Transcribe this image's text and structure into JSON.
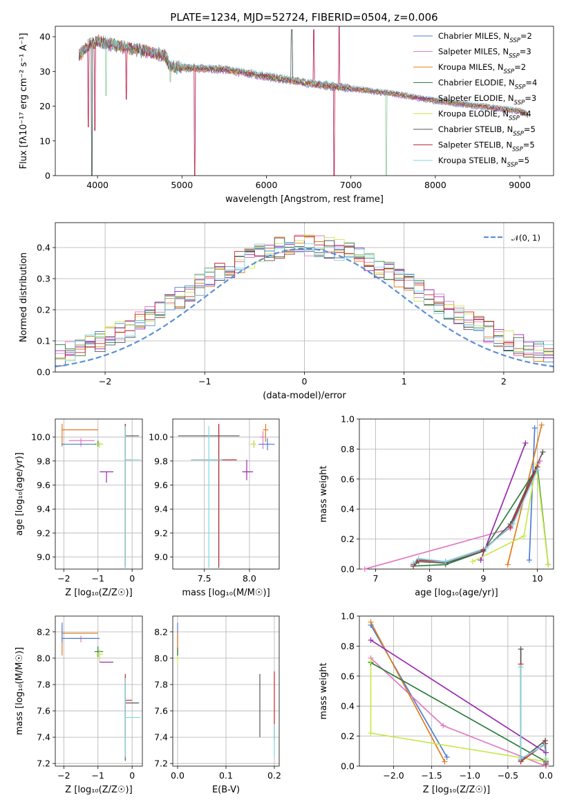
{
  "figure": {
    "title": "PLATE=1234, MJD=52724, FIBERID=0504, z=0.006"
  },
  "colors": {
    "Chabrier MILES": "#4a7cd6",
    "Salpeter MILES": "#e377c2",
    "Kroupa MILES": "#e07b1a",
    "Chabrier ELODIE": "#2f7d3f",
    "Salpeter ELODIE": "#9b27b0",
    "Kroupa ELODIE": "#c8e84a",
    "Chabrier STELIB": "#555555",
    "Salpeter STELIB": "#c0272d",
    "Kroupa STELIB": "#7fd6e3"
  },
  "chart_data": [
    {
      "id": "spectrum",
      "type": "line",
      "xlabel": "wavelength [Angstrom, rest frame]",
      "ylabel": "Flux [fλ10⁻¹⁷ erg cm⁻² s⁻¹ A⁻¹]",
      "xlim": [
        3500,
        9400
      ],
      "ylim": [
        0,
        43
      ],
      "xticks": [
        4000,
        5000,
        6000,
        7000,
        8000,
        9000
      ],
      "yticks": [
        0,
        10,
        20,
        30,
        40
      ],
      "grid": false,
      "legend_position": "top-right",
      "continuum": [
        [
          3780,
          34
        ],
        [
          3900,
          37
        ],
        [
          4000,
          38
        ],
        [
          4200,
          37
        ],
        [
          4500,
          35.5
        ],
        [
          4800,
          34
        ],
        [
          4850,
          31
        ],
        [
          5000,
          30.5
        ],
        [
          5500,
          30
        ],
        [
          6000,
          28
        ],
        [
          6500,
          26
        ],
        [
          7000,
          24.5
        ],
        [
          7500,
          23
        ],
        [
          8000,
          21
        ],
        [
          8500,
          19.5
        ],
        [
          9000,
          18
        ],
        [
          9100,
          17
        ]
      ],
      "spike_features": [
        {
          "x": 3890,
          "y": 14
        },
        {
          "x": 3933,
          "y": 0
        },
        {
          "x": 3968,
          "y": 13
        },
        {
          "x": 4102,
          "y": 23
        },
        {
          "x": 4340,
          "y": 22
        },
        {
          "x": 4861,
          "y": 27
        },
        {
          "x": 5150,
          "y": 0
        },
        {
          "x": 6300,
          "y": 42
        },
        {
          "x": 6563,
          "y": 42
        },
        {
          "x": 6800,
          "y": 0
        },
        {
          "x": 6860,
          "y": 43
        },
        {
          "x": 7420,
          "y": 0
        }
      ],
      "legend": [
        {
          "name": "Chabrier MILES",
          "nssp": "2"
        },
        {
          "name": "Salpeter MILES",
          "nssp": "3"
        },
        {
          "name": "Kroupa MILES",
          "nssp": "2"
        },
        {
          "name": "Chabrier ELODIE",
          "nssp": "4"
        },
        {
          "name": "Salpeter ELODIE",
          "nssp": "3"
        },
        {
          "name": "Kroupa ELODIE",
          "nssp": "4"
        },
        {
          "name": "Chabrier STELIB",
          "nssp": "5"
        },
        {
          "name": "Salpeter STELIB",
          "nssp": "5"
        },
        {
          "name": "Kroupa STELIB",
          "nssp": "5"
        }
      ]
    },
    {
      "id": "residuals",
      "type": "histogram",
      "xlabel": "(data-model)/error",
      "ylabel": "Normed distribution",
      "xlim": [
        -2.5,
        2.5
      ],
      "ylim": [
        0,
        0.48
      ],
      "xticks": [
        -2,
        -1,
        0,
        1,
        2
      ],
      "yticks": [
        0.0,
        0.1,
        0.2,
        0.3,
        0.4
      ],
      "grid": true,
      "legend_position": "top-right",
      "gaussian_label": "𝒩(0, 1)",
      "gaussian_color": "#5b8fd6",
      "bin_width": 0.1,
      "bin_start": -2.5
    },
    {
      "id": "age_vs_Z",
      "type": "errorbar",
      "xlabel": "Z [log₁₀(Z/Z☉)]",
      "ylabel": "age  [log₁₀(age/yr)]",
      "xlim": [
        -2.25,
        0.3
      ],
      "ylim": [
        8.9,
        10.15
      ],
      "xticks": [
        -2,
        -1,
        0
      ],
      "yticks": [
        9.0,
        9.2,
        9.4,
        9.6,
        9.8,
        10.0
      ],
      "grid": true,
      "points": [
        {
          "model": "Kroupa MILES",
          "x": -2.05,
          "y": 10.06,
          "xerr": [
            0,
            1.05
          ],
          "yerr": [
            0.14,
            0.05
          ]
        },
        {
          "model": "Salpeter MILES",
          "x": -1.5,
          "y": 9.97,
          "xerr": [
            0.35,
            0.4
          ],
          "yerr": [
            0.05,
            0.02
          ]
        },
        {
          "model": "Chabrier MILES",
          "x": -2.05,
          "y": 9.94,
          "xerr": [
            0,
            1.1
          ],
          "yerr": [
            0.01,
            0.01
          ]
        },
        {
          "model": "Chabrier ELODIE",
          "x": -1.0,
          "y": 9.94,
          "xerr": [
            0.1,
            0.15
          ],
          "yerr": [
            0.02,
            0.03
          ]
        },
        {
          "model": "Kroupa ELODIE",
          "x": -0.95,
          "y": 9.94,
          "xerr": [
            0.1,
            0.1
          ],
          "yerr": [
            0.03,
            0.02
          ]
        },
        {
          "model": "Salpeter ELODIE",
          "x": -0.75,
          "y": 9.71,
          "xerr": [
            0.2,
            0.2
          ],
          "yerr": [
            0.09,
            0.0
          ]
        },
        {
          "model": "Chabrier STELIB",
          "x": -0.2,
          "y": 10.01,
          "xerr": [
            0,
            0.4
          ],
          "yerr": [
            1.1,
            0.1
          ]
        },
        {
          "model": "Salpeter STELIB",
          "x": -0.2,
          "y": 9.81,
          "xerr": [
            0,
            0.2
          ],
          "yerr": [
            0.88,
            0.3
          ]
        },
        {
          "model": "Kroupa STELIB",
          "x": -0.2,
          "y": 9.81,
          "xerr": [
            0,
            0.45
          ],
          "yerr": [
            0.9,
            0.28
          ]
        }
      ]
    },
    {
      "id": "age_vs_mass",
      "type": "errorbar",
      "xlabel": "mass [log₁₀(M/M☉)]",
      "ylabel": "",
      "xlim": [
        7.15,
        8.33
      ],
      "ylim": [
        8.9,
        10.15
      ],
      "xticks": [
        7.5,
        8.0
      ],
      "yticks": [
        9.0,
        9.2,
        9.4,
        9.6,
        9.8,
        10.0
      ],
      "grid": true,
      "points": [
        {
          "model": "Kroupa MILES",
          "x": 8.18,
          "y": 10.06,
          "xerr": [
            0.03,
            0.03
          ],
          "yerr": [
            0.1,
            0.05
          ]
        },
        {
          "model": "Salpeter MILES",
          "x": 8.15,
          "y": 10.0,
          "xerr": [
            0.03,
            0.03
          ],
          "yerr": [
            0.1,
            0.05
          ]
        },
        {
          "model": "Chabrier MILES",
          "x": 8.2,
          "y": 9.94,
          "xerr": [
            0.1,
            0.08
          ],
          "yerr": [
            0.05,
            0.05
          ]
        },
        {
          "model": "Chabrier ELODIE",
          "x": 8.05,
          "y": 9.94,
          "xerr": [
            0.03,
            0.02
          ],
          "yerr": [
            0.03,
            0.03
          ]
        },
        {
          "model": "Kroupa ELODIE",
          "x": 8.05,
          "y": 9.94,
          "xerr": [
            0.04,
            0.02
          ],
          "yerr": [
            0.03,
            0.03
          ]
        },
        {
          "model": "Salpeter ELODIE",
          "x": 7.97,
          "y": 9.71,
          "xerr": [
            0.05,
            0.07
          ],
          "yerr": [
            0.07,
            0.1
          ]
        },
        {
          "model": "Chabrier STELIB",
          "x": 7.66,
          "y": 10.01,
          "xerr": [
            0.45,
            0.23
          ],
          "yerr": [
            1.1,
            0.1
          ]
        },
        {
          "model": "Salpeter STELIB",
          "x": 7.66,
          "y": 9.81,
          "xerr": [
            0.3,
            0.2
          ],
          "yerr": [
            0.88,
            0.3
          ]
        },
        {
          "model": "Kroupa STELIB",
          "x": 7.55,
          "y": 9.81,
          "xerr": [
            0.2,
            0.15
          ],
          "yerr": [
            0.9,
            0.28
          ]
        }
      ]
    },
    {
      "id": "weight_vs_age",
      "type": "line",
      "xlabel": "age  [log₁₀(age/yr)]",
      "ylabel": "mass weight",
      "xlim": [
        6.7,
        10.3
      ],
      "ylim": [
        0,
        1.0
      ],
      "xticks": [
        7,
        8,
        9,
        10
      ],
      "yticks": [
        0.0,
        0.2,
        0.4,
        0.6,
        0.8,
        1.0
      ],
      "grid": true,
      "series": [
        {
          "model": "Chabrier MILES",
          "x": [
            9.85,
            9.95
          ],
          "y": [
            0.06,
            0.94
          ]
        },
        {
          "model": "Salpeter MILES",
          "x": [
            6.8,
            9.5,
            10.05
          ],
          "y": [
            0.0,
            0.27,
            0.72
          ]
        },
        {
          "model": "Kroupa MILES",
          "x": [
            9.45,
            10.08
          ],
          "y": [
            0.03,
            0.96
          ]
        },
        {
          "model": "Chabrier ELODIE",
          "x": [
            7.7,
            8.3,
            9.0,
            10.0,
            10.2
          ],
          "y": [
            0.02,
            0.03,
            0.12,
            0.68,
            0.03
          ]
        },
        {
          "model": "Salpeter ELODIE",
          "x": [
            8.95,
            9.78
          ],
          "y": [
            0.06,
            0.84
          ]
        },
        {
          "model": "Kroupa ELODIE",
          "x": [
            8.8,
            9.75,
            9.98,
            10.2
          ],
          "y": [
            0.05,
            0.22,
            0.7,
            0.03
          ]
        },
        {
          "model": "Chabrier STELIB",
          "x": [
            7.7,
            7.8,
            8.3,
            9.0,
            9.5,
            10.1
          ],
          "y": [
            0.02,
            0.05,
            0.04,
            0.12,
            0.3,
            0.78
          ]
        },
        {
          "model": "Salpeter STELIB",
          "x": [
            7.7,
            7.8,
            8.3,
            9.0,
            9.5,
            10.0
          ],
          "y": [
            0.03,
            0.06,
            0.05,
            0.13,
            0.28,
            0.68
          ]
        },
        {
          "model": "Kroupa STELIB",
          "x": [
            7.7,
            7.8,
            8.3,
            9.05,
            9.55,
            10.0
          ],
          "y": [
            0.04,
            0.07,
            0.05,
            0.14,
            0.3,
            0.66
          ]
        }
      ]
    },
    {
      "id": "mass_vs_Z",
      "type": "errorbar",
      "xlabel": "Z [log₁₀(Z/Z☉)]",
      "ylabel": "mass [log₁₀(M/M☉)]",
      "xlim": [
        -2.25,
        0.3
      ],
      "ylim": [
        7.18,
        8.32
      ],
      "xticks": [
        -2,
        -1,
        0
      ],
      "yticks": [
        7.2,
        7.4,
        7.6,
        7.8,
        8.0,
        8.2
      ],
      "grid": true,
      "points": [
        {
          "model": "Kroupa MILES",
          "x": -2.05,
          "y": 8.19,
          "xerr": [
            0,
            1.05
          ],
          "yerr": [
            0.17,
            0.05
          ]
        },
        {
          "model": "Salpeter MILES",
          "x": -1.5,
          "y": 8.15,
          "xerr": [
            0.35,
            0.4
          ],
          "yerr": [
            0.03,
            0.02
          ]
        },
        {
          "model": "Chabrier MILES",
          "x": -2.05,
          "y": 8.15,
          "xerr": [
            0,
            1.1
          ],
          "yerr": [
            0.03,
            0.12
          ]
        },
        {
          "model": "Chabrier ELODIE",
          "x": -1.0,
          "y": 8.05,
          "xerr": [
            0.1,
            0.15
          ],
          "yerr": [
            0.04,
            0.04
          ]
        },
        {
          "model": "Kroupa ELODIE",
          "x": -0.95,
          "y": 8.03,
          "xerr": [
            0.1,
            0.1
          ],
          "yerr": [
            0.06,
            0.04
          ]
        },
        {
          "model": "Salpeter ELODIE",
          "x": -0.75,
          "y": 7.97,
          "xerr": [
            0.2,
            0.2
          ],
          "yerr": [
            0.0,
            0.0
          ]
        },
        {
          "model": "Chabrier STELIB",
          "x": -0.2,
          "y": 7.66,
          "xerr": [
            0,
            0.4
          ],
          "yerr": [
            0.44,
            0.2
          ]
        },
        {
          "model": "Salpeter STELIB",
          "x": -0.2,
          "y": 7.68,
          "xerr": [
            0,
            0.2
          ],
          "yerr": [
            0.3,
            0.2
          ]
        },
        {
          "model": "Kroupa STELIB",
          "x": -0.2,
          "y": 7.55,
          "xerr": [
            0,
            0.45
          ],
          "yerr": [
            0.3,
            0.3
          ]
        }
      ]
    },
    {
      "id": "mass_vs_ebv",
      "type": "errorbar",
      "xlabel": "E(B-V)",
      "ylabel": "",
      "xlim": [
        -0.01,
        0.21
      ],
      "ylim": [
        7.18,
        8.32
      ],
      "xticks": [
        0.0,
        0.1,
        0.2
      ],
      "yticks": [
        7.2,
        7.4,
        7.6,
        7.8,
        8.0,
        8.2
      ],
      "grid": true,
      "points": [
        {
          "model": "Chabrier MILES",
          "x": 0.0,
          "y": 8.15,
          "yerr": [
            0.13,
            0.12
          ]
        },
        {
          "model": "Kroupa MILES",
          "x": 0.0,
          "y": 8.1,
          "yerr": [
            0.08,
            0.1
          ]
        },
        {
          "model": "Kroupa ELODIE",
          "x": 0.0,
          "y": 8.0,
          "yerr": [
            0.05,
            0.05
          ]
        },
        {
          "model": "Chabrier ELODIE",
          "x": 0.0,
          "y": 8.05,
          "yerr": [
            0.03,
            0.03
          ]
        },
        {
          "model": "Chabrier STELIB",
          "x": 0.17,
          "y": 7.66,
          "yerr": [
            0.26,
            0.22
          ]
        },
        {
          "model": "Salpeter STELIB",
          "x": 0.2,
          "y": 7.68,
          "yerr": [
            0.3,
            0.22
          ]
        },
        {
          "model": "Kroupa STELIB",
          "x": 0.2,
          "y": 7.4,
          "yerr": [
            0.15,
            0.1
          ]
        }
      ]
    },
    {
      "id": "weight_vs_Z",
      "type": "line",
      "xlabel": "Z [log₁₀(Z/Z☉)]",
      "ylabel": "mass weight",
      "xlim": [
        -2.45,
        0.1
      ],
      "ylim": [
        0,
        1.0
      ],
      "xticks": [
        -2.0,
        -1.5,
        -1.0,
        -0.5,
        0.0
      ],
      "yticks": [
        0.0,
        0.2,
        0.4,
        0.6,
        0.8,
        1.0
      ],
      "grid": true,
      "series": [
        {
          "model": "Chabrier MILES",
          "x": [
            -2.3,
            -1.3
          ],
          "y": [
            0.94,
            0.06
          ]
        },
        {
          "model": "Salpeter MILES",
          "x": [
            -2.3,
            -1.35,
            0.0
          ],
          "y": [
            0.72,
            0.27,
            0.0
          ]
        },
        {
          "model": "Kroupa MILES",
          "x": [
            -2.3,
            -1.33
          ],
          "y": [
            0.96,
            0.03
          ]
        },
        {
          "model": "Chabrier ELODIE",
          "x": [
            -2.3,
            0.0
          ],
          "y": [
            0.69,
            0.03
          ]
        },
        {
          "model": "Salpeter ELODIE",
          "x": [
            -2.3,
            0.0
          ],
          "y": [
            0.84,
            0.09
          ]
        },
        {
          "model": "Kroupa ELODIE",
          "x": [
            -2.3,
            -2.3,
            0.0,
            0.0
          ],
          "y": [
            0.7,
            0.22,
            0.03,
            0.05
          ]
        },
        {
          "model": "Chabrier STELIB",
          "x": [
            -0.33,
            -0.33,
            -0.01,
            0.0,
            0.0
          ],
          "y": [
            0.78,
            0.04,
            0.17,
            0.03,
            0.01
          ]
        },
        {
          "model": "Salpeter STELIB",
          "x": [
            -0.33,
            -0.33,
            -0.01,
            0.0
          ],
          "y": [
            0.68,
            0.03,
            0.15,
            0.02
          ]
        },
        {
          "model": "Kroupa STELIB",
          "x": [
            -0.33,
            -0.33,
            -0.02,
            0.0
          ],
          "y": [
            0.66,
            0.05,
            0.14,
            0.04
          ]
        }
      ]
    }
  ]
}
